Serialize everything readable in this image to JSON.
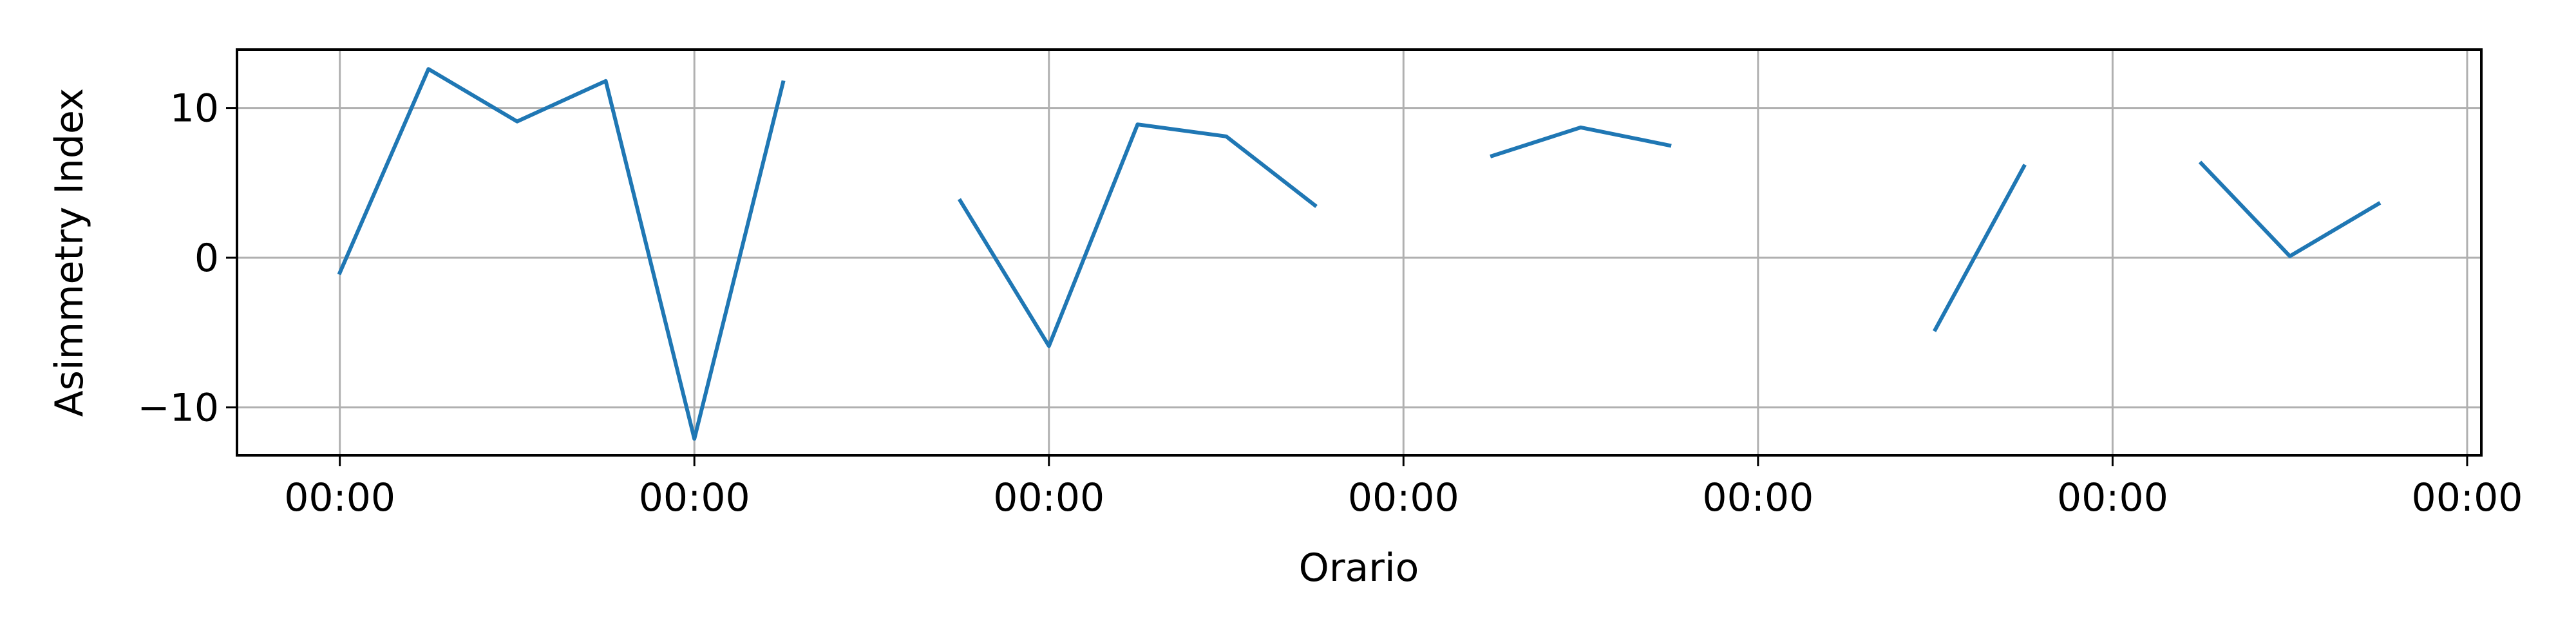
{
  "chart_data": {
    "type": "line",
    "title": "",
    "xlabel": "Orario",
    "ylabel": "Asimmetry Index",
    "x_tick_labels": [
      "00:00",
      "00:00",
      "00:00",
      "00:00",
      "00:00",
      "00:00",
      "00:00"
    ],
    "y_ticks": [
      -10,
      0,
      10
    ],
    "ylim": [
      -13.2,
      13.9
    ],
    "xlim": [
      -0.29,
      6.04
    ],
    "grid": true,
    "legend": "none",
    "series": [
      {
        "color": "#1f77b4",
        "points": [
          [
            0.0,
            -1.0
          ],
          [
            0.25,
            12.6
          ],
          [
            0.5,
            9.1
          ],
          [
            0.75,
            11.8
          ],
          [
            1.0,
            -12.1
          ],
          [
            1.25,
            11.7
          ],
          [
            1.75,
            3.8
          ],
          [
            2.0,
            -5.9
          ],
          [
            2.25,
            8.9
          ],
          [
            2.5,
            8.1
          ],
          [
            2.75,
            3.5
          ],
          [
            3.25,
            6.8
          ],
          [
            3.5,
            8.7
          ],
          [
            3.75,
            7.5
          ],
          [
            4.5,
            -4.8
          ],
          [
            4.75,
            6.1
          ],
          [
            5.25,
            6.3
          ],
          [
            5.5,
            0.1
          ],
          [
            5.75,
            3.6
          ]
        ],
        "segments": [
          [
            0,
            5
          ],
          [
            6,
            10
          ],
          [
            11,
            13
          ],
          [
            14,
            15
          ],
          [
            16,
            18
          ]
        ]
      }
    ]
  }
}
